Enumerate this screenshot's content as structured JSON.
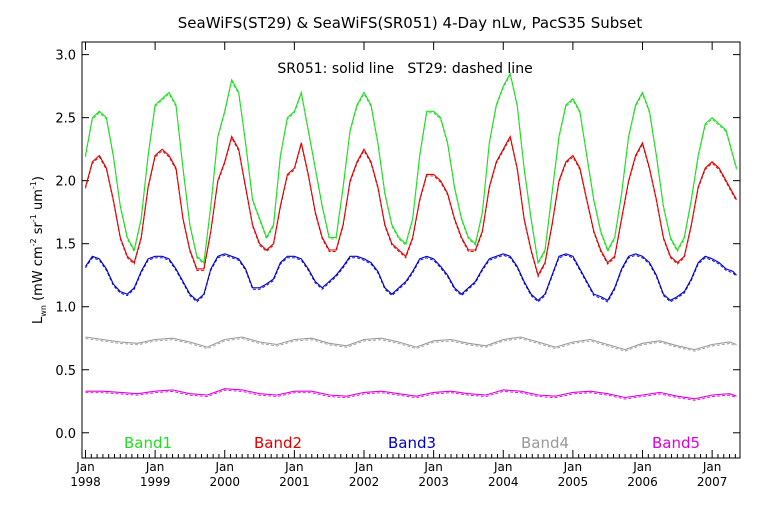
{
  "chart_data": {
    "type": "line",
    "title": "SeaWiFS(ST29) & SeaWiFS(SR051) 4-Day nLw, PacS35 Subset",
    "annotation": "SR051: solid line   ST29: dashed line",
    "ylabel": "L",
    "ylabel_sub": "wn",
    "ylabel_units": "(mW cm",
    "ylabel_sup1": "-2",
    "ylabel_mid1": " sr",
    "ylabel_sup2": "-1",
    "ylabel_mid2": " um",
    "ylabel_sup3": "-1",
    "ylabel_end": ")",
    "xlim": [
      1997.95,
      2007.4
    ],
    "ylim": [
      -0.2,
      3.1
    ],
    "y_ticks": [
      "0.0",
      "0.5",
      "1.0",
      "1.5",
      "2.0",
      "2.5",
      "3.0"
    ],
    "y_tick_values": [
      0.0,
      0.5,
      1.0,
      1.5,
      2.0,
      2.5,
      3.0
    ],
    "x_ticks": [
      {
        "month": "Jan",
        "year": "1998",
        "value": 1998
      },
      {
        "month": "Jan",
        "year": "1999",
        "value": 1999
      },
      {
        "month": "Jan",
        "year": "2000",
        "value": 2000
      },
      {
        "month": "Jan",
        "year": "2001",
        "value": 2001
      },
      {
        "month": "Jan",
        "year": "2002",
        "value": 2002
      },
      {
        "month": "Jan",
        "year": "2003",
        "value": 2003
      },
      {
        "month": "Jan",
        "year": "2004",
        "value": 2004
      },
      {
        "month": "Jan",
        "year": "2005",
        "value": 2005
      },
      {
        "month": "Jan",
        "year": "2006",
        "value": 2006
      },
      {
        "month": "Jan",
        "year": "2007",
        "value": 2007
      }
    ],
    "series": [
      {
        "name": "Band1",
        "color": "#22dd22",
        "x": [
          1998.0,
          1998.1,
          1998.2,
          1998.3,
          1998.4,
          1998.5,
          1998.6,
          1998.7,
          1998.8,
          1998.9,
          1999.0,
          1999.1,
          1999.2,
          1999.3,
          1999.4,
          1999.5,
          1999.6,
          1999.7,
          1999.8,
          1999.9,
          2000.0,
          2000.1,
          2000.2,
          2000.3,
          2000.4,
          2000.5,
          2000.6,
          2000.7,
          2000.8,
          2000.9,
          2001.0,
          2001.1,
          2001.2,
          2001.3,
          2001.4,
          2001.5,
          2001.6,
          2001.7,
          2001.8,
          2001.9,
          2002.0,
          2002.1,
          2002.2,
          2002.3,
          2002.4,
          2002.5,
          2002.6,
          2002.7,
          2002.8,
          2002.9,
          2003.0,
          2003.1,
          2003.2,
          2003.3,
          2003.4,
          2003.5,
          2003.6,
          2003.7,
          2003.8,
          2003.9,
          2004.0,
          2004.1,
          2004.2,
          2004.3,
          2004.4,
          2004.5,
          2004.6,
          2004.7,
          2004.8,
          2004.9,
          2005.0,
          2005.1,
          2005.2,
          2005.3,
          2005.4,
          2005.5,
          2005.6,
          2005.7,
          2005.8,
          2005.9,
          2006.0,
          2006.1,
          2006.2,
          2006.3,
          2006.4,
          2006.5,
          2006.6,
          2006.7,
          2006.8,
          2006.9,
          2007.0,
          2007.1,
          2007.2,
          2007.3,
          2007.35
        ],
        "y": [
          2.2,
          2.5,
          2.55,
          2.5,
          2.2,
          1.8,
          1.55,
          1.45,
          1.7,
          2.2,
          2.6,
          2.65,
          2.7,
          2.6,
          2.1,
          1.65,
          1.4,
          1.35,
          1.8,
          2.35,
          2.55,
          2.8,
          2.7,
          2.3,
          1.85,
          1.7,
          1.55,
          1.65,
          2.2,
          2.5,
          2.55,
          2.7,
          2.4,
          2.1,
          1.8,
          1.55,
          1.55,
          1.95,
          2.4,
          2.6,
          2.7,
          2.6,
          2.3,
          1.9,
          1.65,
          1.55,
          1.5,
          1.7,
          2.2,
          2.55,
          2.55,
          2.5,
          2.3,
          1.95,
          1.7,
          1.55,
          1.5,
          1.75,
          2.3,
          2.6,
          2.75,
          2.85,
          2.6,
          2.1,
          1.7,
          1.35,
          1.45,
          1.9,
          2.35,
          2.6,
          2.65,
          2.55,
          2.2,
          1.85,
          1.6,
          1.45,
          1.55,
          1.9,
          2.35,
          2.6,
          2.7,
          2.55,
          2.2,
          1.8,
          1.55,
          1.45,
          1.55,
          1.85,
          2.2,
          2.45,
          2.5,
          2.45,
          2.4,
          2.2,
          2.1
        ]
      },
      {
        "name": "Band2",
        "color": "#dd0000",
        "x": [
          1998.0,
          1998.1,
          1998.2,
          1998.3,
          1998.4,
          1998.5,
          1998.6,
          1998.7,
          1998.8,
          1998.9,
          1999.0,
          1999.1,
          1999.2,
          1999.3,
          1999.4,
          1999.5,
          1999.6,
          1999.7,
          1999.8,
          1999.9,
          2000.0,
          2000.1,
          2000.2,
          2000.3,
          2000.4,
          2000.5,
          2000.6,
          2000.7,
          2000.8,
          2000.9,
          2001.0,
          2001.1,
          2001.2,
          2001.3,
          2001.4,
          2001.5,
          2001.6,
          2001.7,
          2001.8,
          2001.9,
          2002.0,
          2002.1,
          2002.2,
          2002.3,
          2002.4,
          2002.5,
          2002.6,
          2002.7,
          2002.8,
          2002.9,
          2003.0,
          2003.1,
          2003.2,
          2003.3,
          2003.4,
          2003.5,
          2003.6,
          2003.7,
          2003.8,
          2003.9,
          2004.0,
          2004.1,
          2004.2,
          2004.3,
          2004.4,
          2004.5,
          2004.6,
          2004.7,
          2004.8,
          2004.9,
          2005.0,
          2005.1,
          2005.2,
          2005.3,
          2005.4,
          2005.5,
          2005.6,
          2005.7,
          2005.8,
          2005.9,
          2006.0,
          2006.1,
          2006.2,
          2006.3,
          2006.4,
          2006.5,
          2006.6,
          2006.7,
          2006.8,
          2006.9,
          2007.0,
          2007.1,
          2007.2,
          2007.3,
          2007.35
        ],
        "y": [
          1.95,
          2.15,
          2.2,
          2.1,
          1.85,
          1.55,
          1.4,
          1.35,
          1.55,
          1.95,
          2.2,
          2.25,
          2.2,
          2.1,
          1.7,
          1.45,
          1.3,
          1.3,
          1.6,
          2.0,
          2.15,
          2.35,
          2.25,
          1.95,
          1.65,
          1.5,
          1.45,
          1.5,
          1.8,
          2.05,
          2.1,
          2.3,
          2.05,
          1.75,
          1.55,
          1.45,
          1.45,
          1.65,
          2.0,
          2.15,
          2.25,
          2.15,
          1.95,
          1.65,
          1.5,
          1.45,
          1.4,
          1.55,
          1.85,
          2.05,
          2.05,
          2.0,
          1.9,
          1.7,
          1.55,
          1.45,
          1.45,
          1.6,
          1.95,
          2.15,
          2.25,
          2.35,
          2.1,
          1.7,
          1.45,
          1.25,
          1.35,
          1.65,
          2.0,
          2.15,
          2.2,
          2.1,
          1.85,
          1.6,
          1.45,
          1.35,
          1.4,
          1.7,
          2.0,
          2.2,
          2.3,
          2.1,
          1.85,
          1.55,
          1.4,
          1.35,
          1.4,
          1.65,
          1.95,
          2.1,
          2.15,
          2.1,
          2.0,
          1.9,
          1.85
        ]
      },
      {
        "name": "Band3",
        "color": "#0000cc",
        "x": [
          1998.0,
          1998.1,
          1998.2,
          1998.3,
          1998.4,
          1998.5,
          1998.6,
          1998.7,
          1998.8,
          1998.9,
          1999.0,
          1999.1,
          1999.2,
          1999.3,
          1999.4,
          1999.5,
          1999.6,
          1999.7,
          1999.8,
          1999.9,
          2000.0,
          2000.1,
          2000.2,
          2000.3,
          2000.4,
          2000.5,
          2000.6,
          2000.7,
          2000.8,
          2000.9,
          2001.0,
          2001.1,
          2001.2,
          2001.3,
          2001.4,
          2001.5,
          2001.6,
          2001.7,
          2001.8,
          2001.9,
          2002.0,
          2002.1,
          2002.2,
          2002.3,
          2002.4,
          2002.5,
          2002.6,
          2002.7,
          2002.8,
          2002.9,
          2003.0,
          2003.1,
          2003.2,
          2003.3,
          2003.4,
          2003.5,
          2003.6,
          2003.7,
          2003.8,
          2003.9,
          2004.0,
          2004.1,
          2004.2,
          2004.3,
          2004.4,
          2004.5,
          2004.6,
          2004.7,
          2004.8,
          2004.9,
          2005.0,
          2005.1,
          2005.2,
          2005.3,
          2005.4,
          2005.5,
          2005.6,
          2005.7,
          2005.8,
          2005.9,
          2006.0,
          2006.1,
          2006.2,
          2006.3,
          2006.4,
          2006.5,
          2006.6,
          2006.7,
          2006.8,
          2006.9,
          2007.0,
          2007.1,
          2007.2,
          2007.3,
          2007.35
        ],
        "y": [
          1.32,
          1.4,
          1.38,
          1.3,
          1.18,
          1.12,
          1.1,
          1.15,
          1.28,
          1.38,
          1.4,
          1.4,
          1.38,
          1.3,
          1.2,
          1.1,
          1.05,
          1.1,
          1.3,
          1.4,
          1.42,
          1.4,
          1.38,
          1.3,
          1.15,
          1.15,
          1.18,
          1.22,
          1.35,
          1.4,
          1.4,
          1.38,
          1.3,
          1.2,
          1.15,
          1.2,
          1.25,
          1.32,
          1.4,
          1.4,
          1.38,
          1.35,
          1.28,
          1.15,
          1.1,
          1.15,
          1.2,
          1.28,
          1.38,
          1.4,
          1.38,
          1.32,
          1.25,
          1.15,
          1.1,
          1.15,
          1.2,
          1.3,
          1.38,
          1.4,
          1.42,
          1.4,
          1.32,
          1.2,
          1.1,
          1.05,
          1.1,
          1.25,
          1.4,
          1.42,
          1.4,
          1.3,
          1.2,
          1.1,
          1.08,
          1.05,
          1.15,
          1.3,
          1.4,
          1.42,
          1.4,
          1.35,
          1.25,
          1.1,
          1.05,
          1.08,
          1.12,
          1.22,
          1.35,
          1.4,
          1.38,
          1.35,
          1.3,
          1.28,
          1.25
        ]
      },
      {
        "name": "Band4",
        "color": "#999999",
        "x": [
          1998.0,
          1998.25,
          1998.5,
          1998.75,
          1999.0,
          1999.25,
          1999.5,
          1999.75,
          2000.0,
          2000.25,
          2000.5,
          2000.75,
          2001.0,
          2001.25,
          2001.5,
          2001.75,
          2002.0,
          2002.25,
          2002.5,
          2002.75,
          2003.0,
          2003.25,
          2003.5,
          2003.75,
          2004.0,
          2004.25,
          2004.5,
          2004.75,
          2005.0,
          2005.25,
          2005.5,
          2005.75,
          2006.0,
          2006.25,
          2006.5,
          2006.75,
          2007.0,
          2007.25,
          2007.35
        ],
        "y": [
          0.76,
          0.74,
          0.72,
          0.71,
          0.74,
          0.75,
          0.72,
          0.68,
          0.74,
          0.76,
          0.72,
          0.7,
          0.74,
          0.75,
          0.71,
          0.69,
          0.74,
          0.75,
          0.72,
          0.68,
          0.73,
          0.74,
          0.71,
          0.69,
          0.74,
          0.76,
          0.72,
          0.68,
          0.72,
          0.74,
          0.7,
          0.66,
          0.71,
          0.73,
          0.69,
          0.66,
          0.7,
          0.72,
          0.7
        ]
      },
      {
        "name": "Band5",
        "color": "#dd00dd",
        "x": [
          1998.0,
          1998.25,
          1998.5,
          1998.75,
          1999.0,
          1999.25,
          1999.5,
          1999.75,
          2000.0,
          2000.25,
          2000.5,
          2000.75,
          2001.0,
          2001.25,
          2001.5,
          2001.75,
          2002.0,
          2002.25,
          2002.5,
          2002.75,
          2003.0,
          2003.25,
          2003.5,
          2003.75,
          2004.0,
          2004.25,
          2004.5,
          2004.75,
          2005.0,
          2005.25,
          2005.5,
          2005.75,
          2006.0,
          2006.25,
          2006.5,
          2006.75,
          2007.0,
          2007.25,
          2007.35
        ],
        "y": [
          0.33,
          0.33,
          0.32,
          0.31,
          0.33,
          0.34,
          0.31,
          0.3,
          0.35,
          0.34,
          0.31,
          0.3,
          0.33,
          0.33,
          0.3,
          0.29,
          0.32,
          0.33,
          0.31,
          0.29,
          0.32,
          0.33,
          0.31,
          0.3,
          0.34,
          0.33,
          0.3,
          0.29,
          0.32,
          0.33,
          0.31,
          0.28,
          0.3,
          0.32,
          0.29,
          0.27,
          0.3,
          0.31,
          0.29
        ]
      }
    ]
  }
}
